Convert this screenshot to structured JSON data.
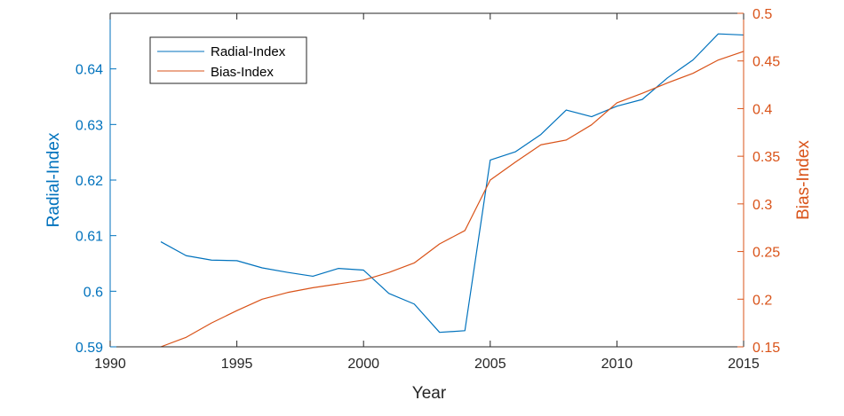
{
  "chart_data": {
    "type": "line",
    "xlabel": "Year",
    "xlim": [
      1990,
      2015
    ],
    "x_ticks": [
      1990,
      1995,
      2000,
      2005,
      2010,
      2015
    ],
    "x": [
      1992,
      1993,
      1994,
      1995,
      1996,
      1997,
      1998,
      1999,
      2000,
      2001,
      2002,
      2003,
      2004,
      2005,
      2006,
      2007,
      2008,
      2009,
      2010,
      2011,
      2012,
      2013,
      2014,
      2015
    ],
    "y_left": {
      "label": "Radial-Index",
      "lim": [
        0.59,
        0.65
      ],
      "ticks": [
        0.59,
        0.6,
        0.61,
        0.62,
        0.63,
        0.64
      ],
      "color": "#0072BD"
    },
    "y_right": {
      "label": "Bias-Index",
      "lim": [
        0.15,
        0.5
      ],
      "ticks": [
        0.15,
        0.2,
        0.25,
        0.3,
        0.35,
        0.4,
        0.45,
        0.5
      ],
      "color": "#D95319"
    },
    "series": [
      {
        "name": "Radial-Index",
        "axis": "left",
        "color": "#0072BD",
        "values": [
          0.6089,
          0.6064,
          0.6056,
          0.6055,
          0.6042,
          0.6034,
          0.6027,
          0.6041,
          0.6038,
          0.5996,
          0.5977,
          0.5926,
          0.5929,
          0.6236,
          0.6251,
          0.6282,
          0.6326,
          0.6314,
          0.6333,
          0.6345,
          0.6384,
          0.6416,
          0.6463,
          0.6461
        ]
      },
      {
        "name": "Bias-Index",
        "axis": "right",
        "color": "#D95319",
        "values": [
          0.15,
          0.16,
          0.175,
          0.188,
          0.2,
          0.207,
          0.212,
          0.216,
          0.22,
          0.228,
          0.238,
          0.258,
          0.272,
          0.325,
          0.344,
          0.362,
          0.367,
          0.383,
          0.406,
          0.416,
          0.427,
          0.437,
          0.451,
          0.46
        ]
      }
    ],
    "legend": {
      "position": "top-left",
      "entries": [
        "Radial-Index",
        "Bias-Index"
      ]
    },
    "grid": false
  }
}
